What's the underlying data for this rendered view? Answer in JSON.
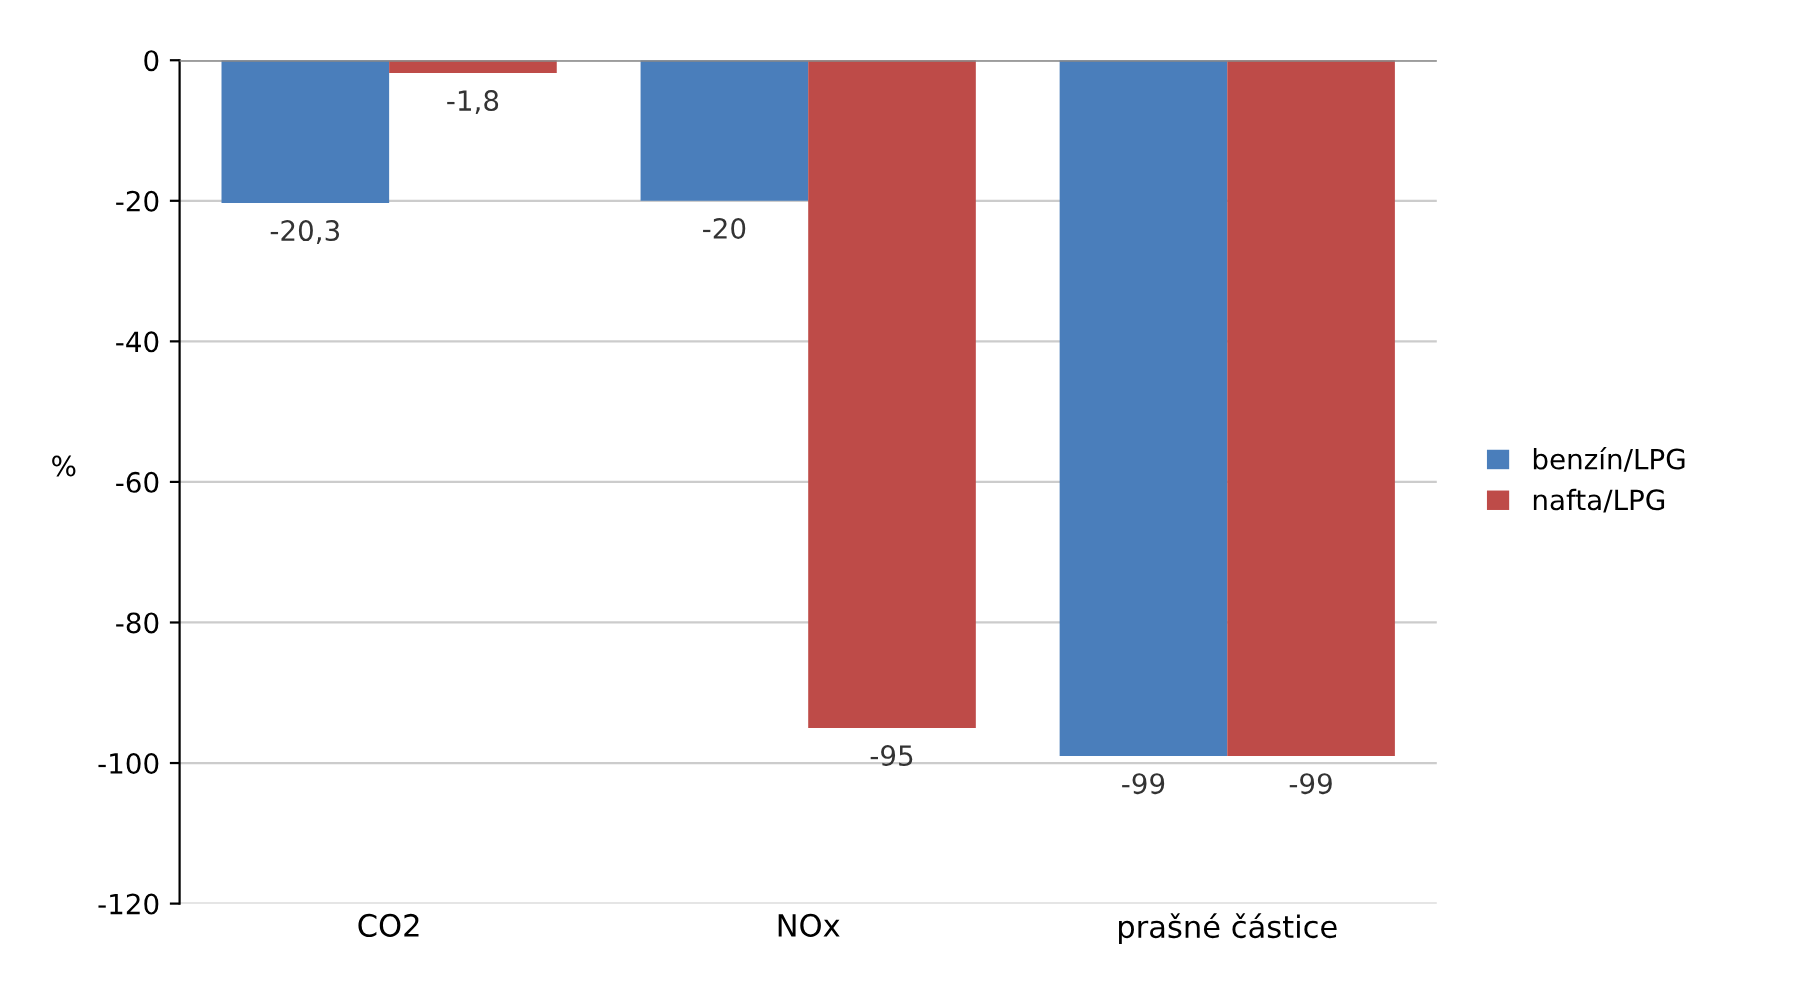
{
  "chart_data": {
    "type": "bar",
    "categories": [
      "CO2",
      "NOx",
      "prašné částice"
    ],
    "series": [
      {
        "name": "benzín/LPG",
        "color": "#4a7ebb",
        "values": [
          -20.3,
          -20,
          -99
        ],
        "value_labels": [
          "-20,3",
          "-20",
          "-99"
        ]
      },
      {
        "name": "nafta/LPG",
        "color": "#be4b48",
        "values": [
          -1.8,
          -95,
          -99
        ],
        "value_labels": [
          "-1,8",
          "-95",
          "-99"
        ]
      }
    ],
    "ylabel": "%",
    "ylim": [
      -120,
      0
    ],
    "yticks": [
      -120,
      -100,
      -80,
      -60,
      -40,
      -20,
      0
    ],
    "grid": "y",
    "legend": "right"
  }
}
